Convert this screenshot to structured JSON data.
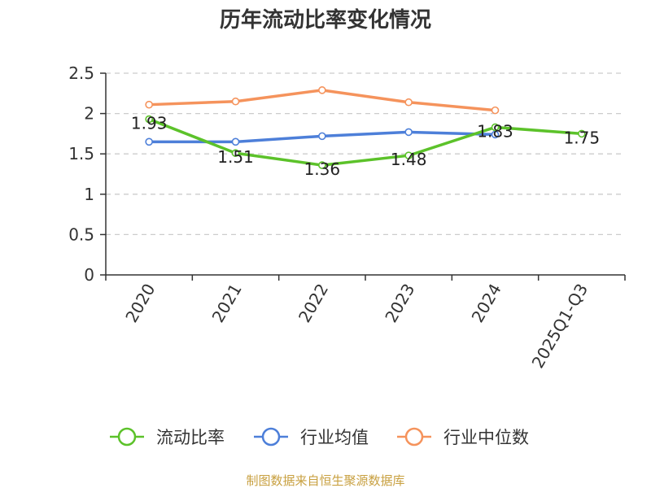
{
  "chart_data": {
    "type": "line",
    "title": "历年流动比率变化情况",
    "categories": [
      "2020",
      "2021",
      "2022",
      "2023",
      "2024",
      "2025Q1-Q3"
    ],
    "ylim": [
      0,
      2.5
    ],
    "yticks": [
      "0",
      "0.5",
      "1",
      "1.5",
      "2",
      "2.5"
    ],
    "grid": true,
    "legend_position": "bottom",
    "series": [
      {
        "name": "流动比率",
        "color": "#5cc22a",
        "values": [
          1.93,
          1.51,
          1.36,
          1.48,
          1.83,
          1.75
        ],
        "labels": [
          "1.93",
          "1.51",
          "1.36",
          "1.48",
          "1.83",
          "1.75"
        ]
      },
      {
        "name": "行业均值",
        "color": "#4d7fd9",
        "values": [
          1.65,
          1.65,
          1.72,
          1.77,
          1.74,
          null
        ]
      },
      {
        "name": "行业中位数",
        "color": "#f5935c",
        "values": [
          2.11,
          2.15,
          2.29,
          2.14,
          2.04,
          null
        ]
      }
    ]
  },
  "source": "制图数据来自恒生聚源数据库"
}
